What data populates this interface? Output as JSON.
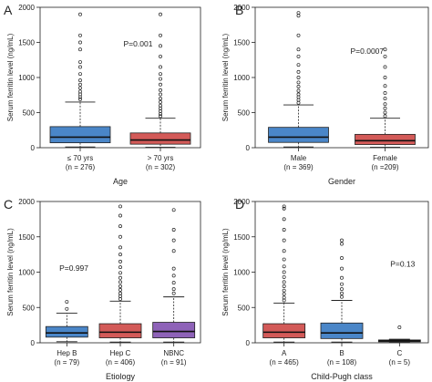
{
  "colors": {
    "blue": "#4a86c8",
    "red": "#d35a58",
    "black": "#111111",
    "axis": "#222222"
  },
  "chart_data": [
    {
      "type": "box",
      "panel": "A",
      "xlabel": "Age",
      "ylabel": "Serum ferritin level (ng/mL)",
      "ylim": [
        0,
        2000
      ],
      "yticks": [
        0,
        500,
        1000,
        1500,
        2000
      ],
      "annotation": "P=0.001",
      "boxes": [
        {
          "label": "≤ 70 yrs",
          "n": "(n = 276)",
          "color": "blue",
          "min": 10,
          "q1": 70,
          "median": 150,
          "q3": 300,
          "whisker_hi": 650,
          "outliers": [
            690,
            720,
            760,
            800,
            850,
            900,
            960,
            1050,
            1150,
            1220,
            1400,
            1500,
            1600,
            1900
          ]
        },
        {
          "label": "> 70 yrs",
          "n": "(n = 302)",
          "color": "red",
          "min": 5,
          "q1": 50,
          "median": 110,
          "q3": 210,
          "whisker_hi": 420,
          "outliers": [
            450,
            480,
            520,
            560,
            600,
            650,
            700,
            760,
            820,
            900,
            980,
            1050,
            1150,
            1300,
            1450,
            1600,
            1900
          ]
        }
      ]
    },
    {
      "type": "box",
      "panel": "B",
      "xlabel": "Gender",
      "ylabel": "Serum ferritin level (ng/mL)",
      "ylim": [
        0,
        2000
      ],
      "yticks": [
        0,
        500,
        1000,
        1500,
        2000
      ],
      "annotation": "P=0.0007",
      "boxes": [
        {
          "label": "Male",
          "n": "(n = 369)",
          "color": "blue",
          "min": 10,
          "q1": 75,
          "median": 150,
          "q3": 290,
          "whisker_hi": 610,
          "outliers": [
            640,
            680,
            720,
            760,
            810,
            870,
            930,
            1000,
            1080,
            1180,
            1300,
            1400,
            1600,
            1880,
            1920
          ]
        },
        {
          "label": "Female",
          "n": "(n =209)",
          "color": "red",
          "min": 5,
          "q1": 45,
          "median": 100,
          "q3": 190,
          "whisker_hi": 420,
          "outliers": [
            450,
            500,
            560,
            620,
            700,
            780,
            880,
            1000,
            1150,
            1300,
            1400
          ]
        }
      ]
    },
    {
      "type": "box",
      "panel": "C",
      "xlabel": "Etiology",
      "ylabel": "Serum ferritin level (ng/mL)",
      "ylim": [
        0,
        2000
      ],
      "yticks": [
        0,
        500,
        1000,
        1500,
        2000
      ],
      "annotation": "P=0.997",
      "boxes": [
        {
          "label": "Hep B",
          "n": "(n = 79)",
          "color": "blue",
          "min": 15,
          "q1": 80,
          "median": 140,
          "q3": 230,
          "whisker_hi": 420,
          "outliers": [
            480,
            580
          ]
        },
        {
          "label": "Hep C",
          "n": "(n = 406)",
          "color": "red",
          "min": 10,
          "q1": 70,
          "median": 150,
          "q3": 270,
          "whisker_hi": 590,
          "outliers": [
            620,
            660,
            700,
            750,
            800,
            860,
            920,
            990,
            1070,
            1150,
            1250,
            1350,
            1500,
            1650,
            1800,
            1930
          ]
        },
        {
          "label": "NBNC",
          "n": "(n = 91)",
          "color": "purple",
          "min": 10,
          "q1": 70,
          "median": 160,
          "q3": 290,
          "whisker_hi": 650,
          "outliers": [
            700,
            760,
            850,
            950,
            1050,
            1300,
            1450,
            1600,
            1880
          ]
        }
      ]
    },
    {
      "type": "box",
      "panel": "D",
      "xlabel": "Child-Pugh class",
      "ylabel": "Serum ferritin level (ng/mL)",
      "ylim": [
        0,
        2000
      ],
      "yticks": [
        0,
        500,
        1000,
        1500,
        2000
      ],
      "annotation": "P=0.13",
      "boxes": [
        {
          "label": "A",
          "n": "(n = 465)",
          "color": "red",
          "min": 10,
          "q1": 70,
          "median": 150,
          "q3": 270,
          "whisker_hi": 560,
          "outliers": [
            600,
            640,
            690,
            740,
            800,
            860,
            930,
            1000,
            1080,
            1180,
            1300,
            1450,
            1600,
            1750,
            1900,
            1930
          ]
        },
        {
          "label": "B",
          "n": "(n = 108)",
          "color": "blue",
          "min": 10,
          "q1": 60,
          "median": 140,
          "q3": 280,
          "whisker_hi": 600,
          "outliers": [
            650,
            700,
            760,
            830,
            920,
            1050,
            1200,
            1400,
            1450
          ]
        },
        {
          "label": "C",
          "n": "(n = 5)",
          "color": "black",
          "min": 10,
          "q1": 20,
          "median": 30,
          "q3": 40,
          "whisker_hi": 50,
          "outliers": [
            220
          ]
        }
      ]
    }
  ]
}
